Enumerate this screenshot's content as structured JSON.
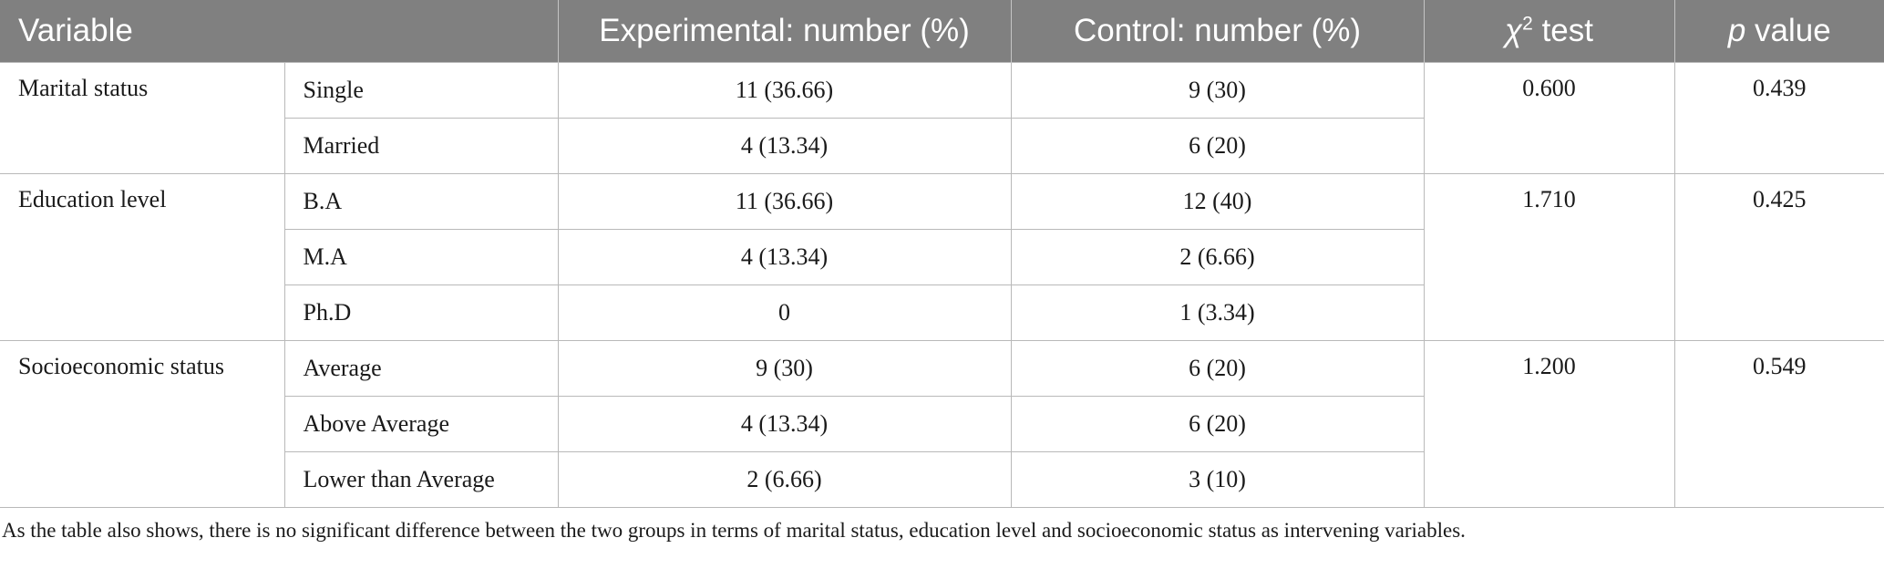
{
  "table": {
    "headers": {
      "variable": "Variable",
      "experimental": "Experimental: number (%)",
      "control": "Control: number (%)",
      "chi_symbol": "χ",
      "chi_superscript": "2",
      "chi_suffix": " test",
      "p_symbol": "p",
      "p_suffix": " value"
    },
    "groups": [
      {
        "variable": "Marital status",
        "chi2": "0.600",
        "p": "0.439",
        "rows": [
          {
            "category": "Single",
            "experimental": "11 (36.66)",
            "control": "9 (30)"
          },
          {
            "category": "Married",
            "experimental": "4 (13.34)",
            "control": "6 (20)"
          }
        ]
      },
      {
        "variable": "Education level",
        "chi2": "1.710",
        "p": "0.425",
        "rows": [
          {
            "category": "B.A",
            "experimental": "11 (36.66)",
            "control": "12 (40)"
          },
          {
            "category": "M.A",
            "experimental": "4 (13.34)",
            "control": "2 (6.66)"
          },
          {
            "category": "Ph.D",
            "experimental": "0",
            "control": "1 (3.34)"
          }
        ]
      },
      {
        "variable": "Socioeconomic status",
        "chi2": "1.200",
        "p": "0.549",
        "rows": [
          {
            "category": "Average",
            "experimental": "9 (30)",
            "control": "6 (20)"
          },
          {
            "category": "Above Average",
            "experimental": "4 (13.34)",
            "control": "6 (20)"
          },
          {
            "category": "Lower than Average",
            "experimental": "2 (6.66)",
            "control": "3 (10)"
          }
        ]
      }
    ]
  },
  "footnote": "As the table also shows, there is no significant difference between the two groups in terms of marital status, education level and socioeconomic status as intervening variables."
}
